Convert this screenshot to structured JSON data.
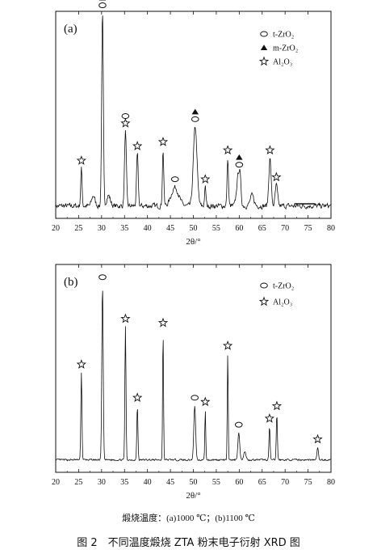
{
  "chart_data": [
    {
      "type": "line",
      "panel": "(a)",
      "xlabel": "2θ/°",
      "xlim": [
        20,
        80
      ],
      "xticks": [
        20,
        25,
        30,
        35,
        40,
        45,
        50,
        55,
        60,
        65,
        70,
        75,
        80
      ],
      "yticks_shown": false,
      "legend": [
        {
          "symbol": "ellipse",
          "label": "t-ZrO₂"
        },
        {
          "symbol": "triangle",
          "label": "m-ZrO₂"
        },
        {
          "symbol": "star",
          "label": "Al₂O₃"
        }
      ],
      "legend_position": "top-right",
      "series": [
        {
          "baseline": 0.06,
          "peaks": [
            {
              "x": 25.6,
              "h": 0.18,
              "w": 0.15
            },
            {
              "x": 28.2,
              "h": 0.05,
              "w": 0.35
            },
            {
              "x": 30.2,
              "h": 0.93,
              "w": 0.18
            },
            {
              "x": 31.5,
              "h": 0.05,
              "w": 0.4
            },
            {
              "x": 35.2,
              "h": 0.36,
              "w": 0.2
            },
            {
              "x": 37.8,
              "h": 0.25,
              "w": 0.18
            },
            {
              "x": 43.4,
              "h": 0.27,
              "w": 0.15
            },
            {
              "x": 46.0,
              "h": 0.09,
              "w": 0.8
            },
            {
              "x": 50.4,
              "h": 0.38,
              "w": 0.4
            },
            {
              "x": 52.6,
              "h": 0.09,
              "w": 0.15
            },
            {
              "x": 57.5,
              "h": 0.23,
              "w": 0.15
            },
            {
              "x": 59.8,
              "h": 0.15,
              "w": 0.35
            },
            {
              "x": 60.2,
              "h": 0.08,
              "w": 0.2
            },
            {
              "x": 62.8,
              "h": 0.05,
              "w": 0.4
            },
            {
              "x": 66.7,
              "h": 0.23,
              "w": 0.25
            },
            {
              "x": 68.1,
              "h": 0.1,
              "w": 0.25
            }
          ],
          "noise": 0.018
        }
      ],
      "markers": [
        {
          "x": 25.6,
          "h": 0.18,
          "stack": [
            "star"
          ]
        },
        {
          "x": 30.2,
          "h": 0.93,
          "stack": [
            "ellipse",
            "triangle"
          ]
        },
        {
          "x": 35.2,
          "h": 0.36,
          "stack": [
            "star",
            "ellipse"
          ]
        },
        {
          "x": 37.8,
          "h": 0.25,
          "stack": [
            "star"
          ]
        },
        {
          "x": 43.4,
          "h": 0.27,
          "stack": [
            "star"
          ]
        },
        {
          "x": 46.0,
          "h": 0.09,
          "stack": [
            "ellipse"
          ]
        },
        {
          "x": 50.4,
          "h": 0.38,
          "stack": [
            "ellipse",
            "triangle"
          ]
        },
        {
          "x": 52.6,
          "h": 0.09,
          "stack": [
            "star"
          ]
        },
        {
          "x": 57.5,
          "h": 0.23,
          "stack": [
            "star"
          ]
        },
        {
          "x": 60.0,
          "h": 0.16,
          "stack": [
            "ellipse",
            "triangle"
          ]
        },
        {
          "x": 66.7,
          "h": 0.23,
          "stack": [
            "star"
          ]
        },
        {
          "x": 68.1,
          "h": 0.1,
          "stack": [
            "star"
          ]
        }
      ]
    },
    {
      "type": "line",
      "panel": "(b)",
      "xlabel": "2θ/°",
      "xlim": [
        20,
        80
      ],
      "xticks": [
        20,
        25,
        30,
        35,
        40,
        45,
        50,
        55,
        60,
        65,
        70,
        75,
        80
      ],
      "yticks_shown": false,
      "legend": [
        {
          "symbol": "ellipse",
          "label": "t-ZrO₂"
        },
        {
          "symbol": "star",
          "label": "Al₂O₃"
        }
      ],
      "legend_position": "top-right",
      "series": [
        {
          "baseline": 0.06,
          "peaks": [
            {
              "x": 25.6,
              "h": 0.42,
              "w": 0.12
            },
            {
              "x": 30.2,
              "h": 0.84,
              "w": 0.15
            },
            {
              "x": 35.2,
              "h": 0.64,
              "w": 0.12
            },
            {
              "x": 37.8,
              "h": 0.26,
              "w": 0.12
            },
            {
              "x": 43.4,
              "h": 0.62,
              "w": 0.1
            },
            {
              "x": 50.3,
              "h": 0.26,
              "w": 0.2
            },
            {
              "x": 52.6,
              "h": 0.24,
              "w": 0.1
            },
            {
              "x": 57.5,
              "h": 0.51,
              "w": 0.1
            },
            {
              "x": 59.9,
              "h": 0.13,
              "w": 0.2
            },
            {
              "x": 61.2,
              "h": 0.04,
              "w": 0.25
            },
            {
              "x": 66.6,
              "h": 0.16,
              "w": 0.12
            },
            {
              "x": 68.2,
              "h": 0.22,
              "w": 0.12
            },
            {
              "x": 77.1,
              "h": 0.06,
              "w": 0.15
            }
          ],
          "noise": 0.006
        }
      ],
      "markers": [
        {
          "x": 25.6,
          "h": 0.42,
          "stack": [
            "star"
          ]
        },
        {
          "x": 30.2,
          "h": 0.84,
          "stack": [
            "ellipse"
          ]
        },
        {
          "x": 35.2,
          "h": 0.64,
          "stack": [
            "star"
          ]
        },
        {
          "x": 37.8,
          "h": 0.26,
          "stack": [
            "star"
          ]
        },
        {
          "x": 43.4,
          "h": 0.62,
          "stack": [
            "star"
          ]
        },
        {
          "x": 50.3,
          "h": 0.26,
          "stack": [
            "ellipse"
          ]
        },
        {
          "x": 52.6,
          "h": 0.24,
          "stack": [
            "star"
          ]
        },
        {
          "x": 57.5,
          "h": 0.51,
          "stack": [
            "star"
          ]
        },
        {
          "x": 59.9,
          "h": 0.13,
          "stack": [
            "ellipse"
          ]
        },
        {
          "x": 66.6,
          "h": 0.16,
          "stack": [
            "star"
          ]
        },
        {
          "x": 68.2,
          "h": 0.22,
          "stack": [
            "star"
          ]
        },
        {
          "x": 77.1,
          "h": 0.06,
          "stack": [
            "star"
          ]
        }
      ]
    }
  ],
  "caption": {
    "subtitle": "煅烧温度：(a)1000 ℃；(b)1100 ℃",
    "title": "图 2　不同温度煅烧 ZTA 粉末电子衍射 XRD 图"
  }
}
